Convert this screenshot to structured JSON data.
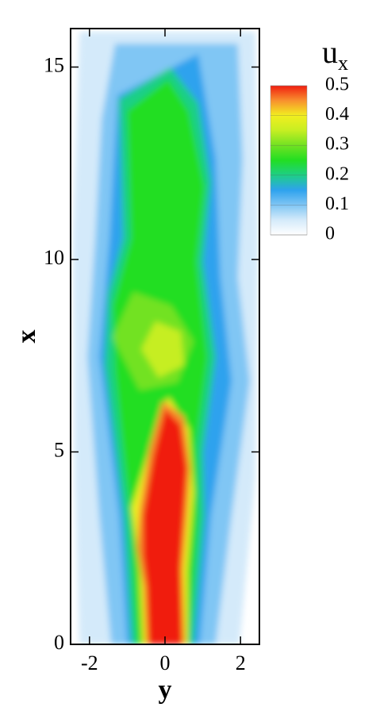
{
  "chart_data": {
    "type": "contour",
    "xlabel": "y",
    "ylabel": "x",
    "xlim": [
      -2.5,
      2.5
    ],
    "xticks": [
      -2,
      0,
      2
    ],
    "ylim": [
      0,
      16
    ],
    "yticks": [
      0,
      5,
      10,
      15
    ],
    "colorbar_label": "u",
    "colorbar_label_sub": "x",
    "colorbar_lim": [
      0,
      0.5
    ],
    "colorbar_ticks": [
      0,
      0.1,
      0.2,
      0.3,
      0.4,
      0.5
    ],
    "colormap": [
      {
        "value": 0,
        "color": "#ffffff"
      },
      {
        "value": 0.05,
        "color": "#d4eafa"
      },
      {
        "value": 0.1,
        "color": "#80c6f4"
      },
      {
        "value": 0.15,
        "color": "#2ea2ee"
      },
      {
        "value": 0.2,
        "color": "#1ecf86"
      },
      {
        "value": 0.25,
        "color": "#22de22"
      },
      {
        "value": 0.3,
        "color": "#72e222"
      },
      {
        "value": 0.35,
        "color": "#c6ee22"
      },
      {
        "value": 0.4,
        "color": "#f2ee20"
      },
      {
        "value": 0.45,
        "color": "#f8902e"
      },
      {
        "value": 0.5,
        "color": "#f01e10"
      }
    ]
  }
}
